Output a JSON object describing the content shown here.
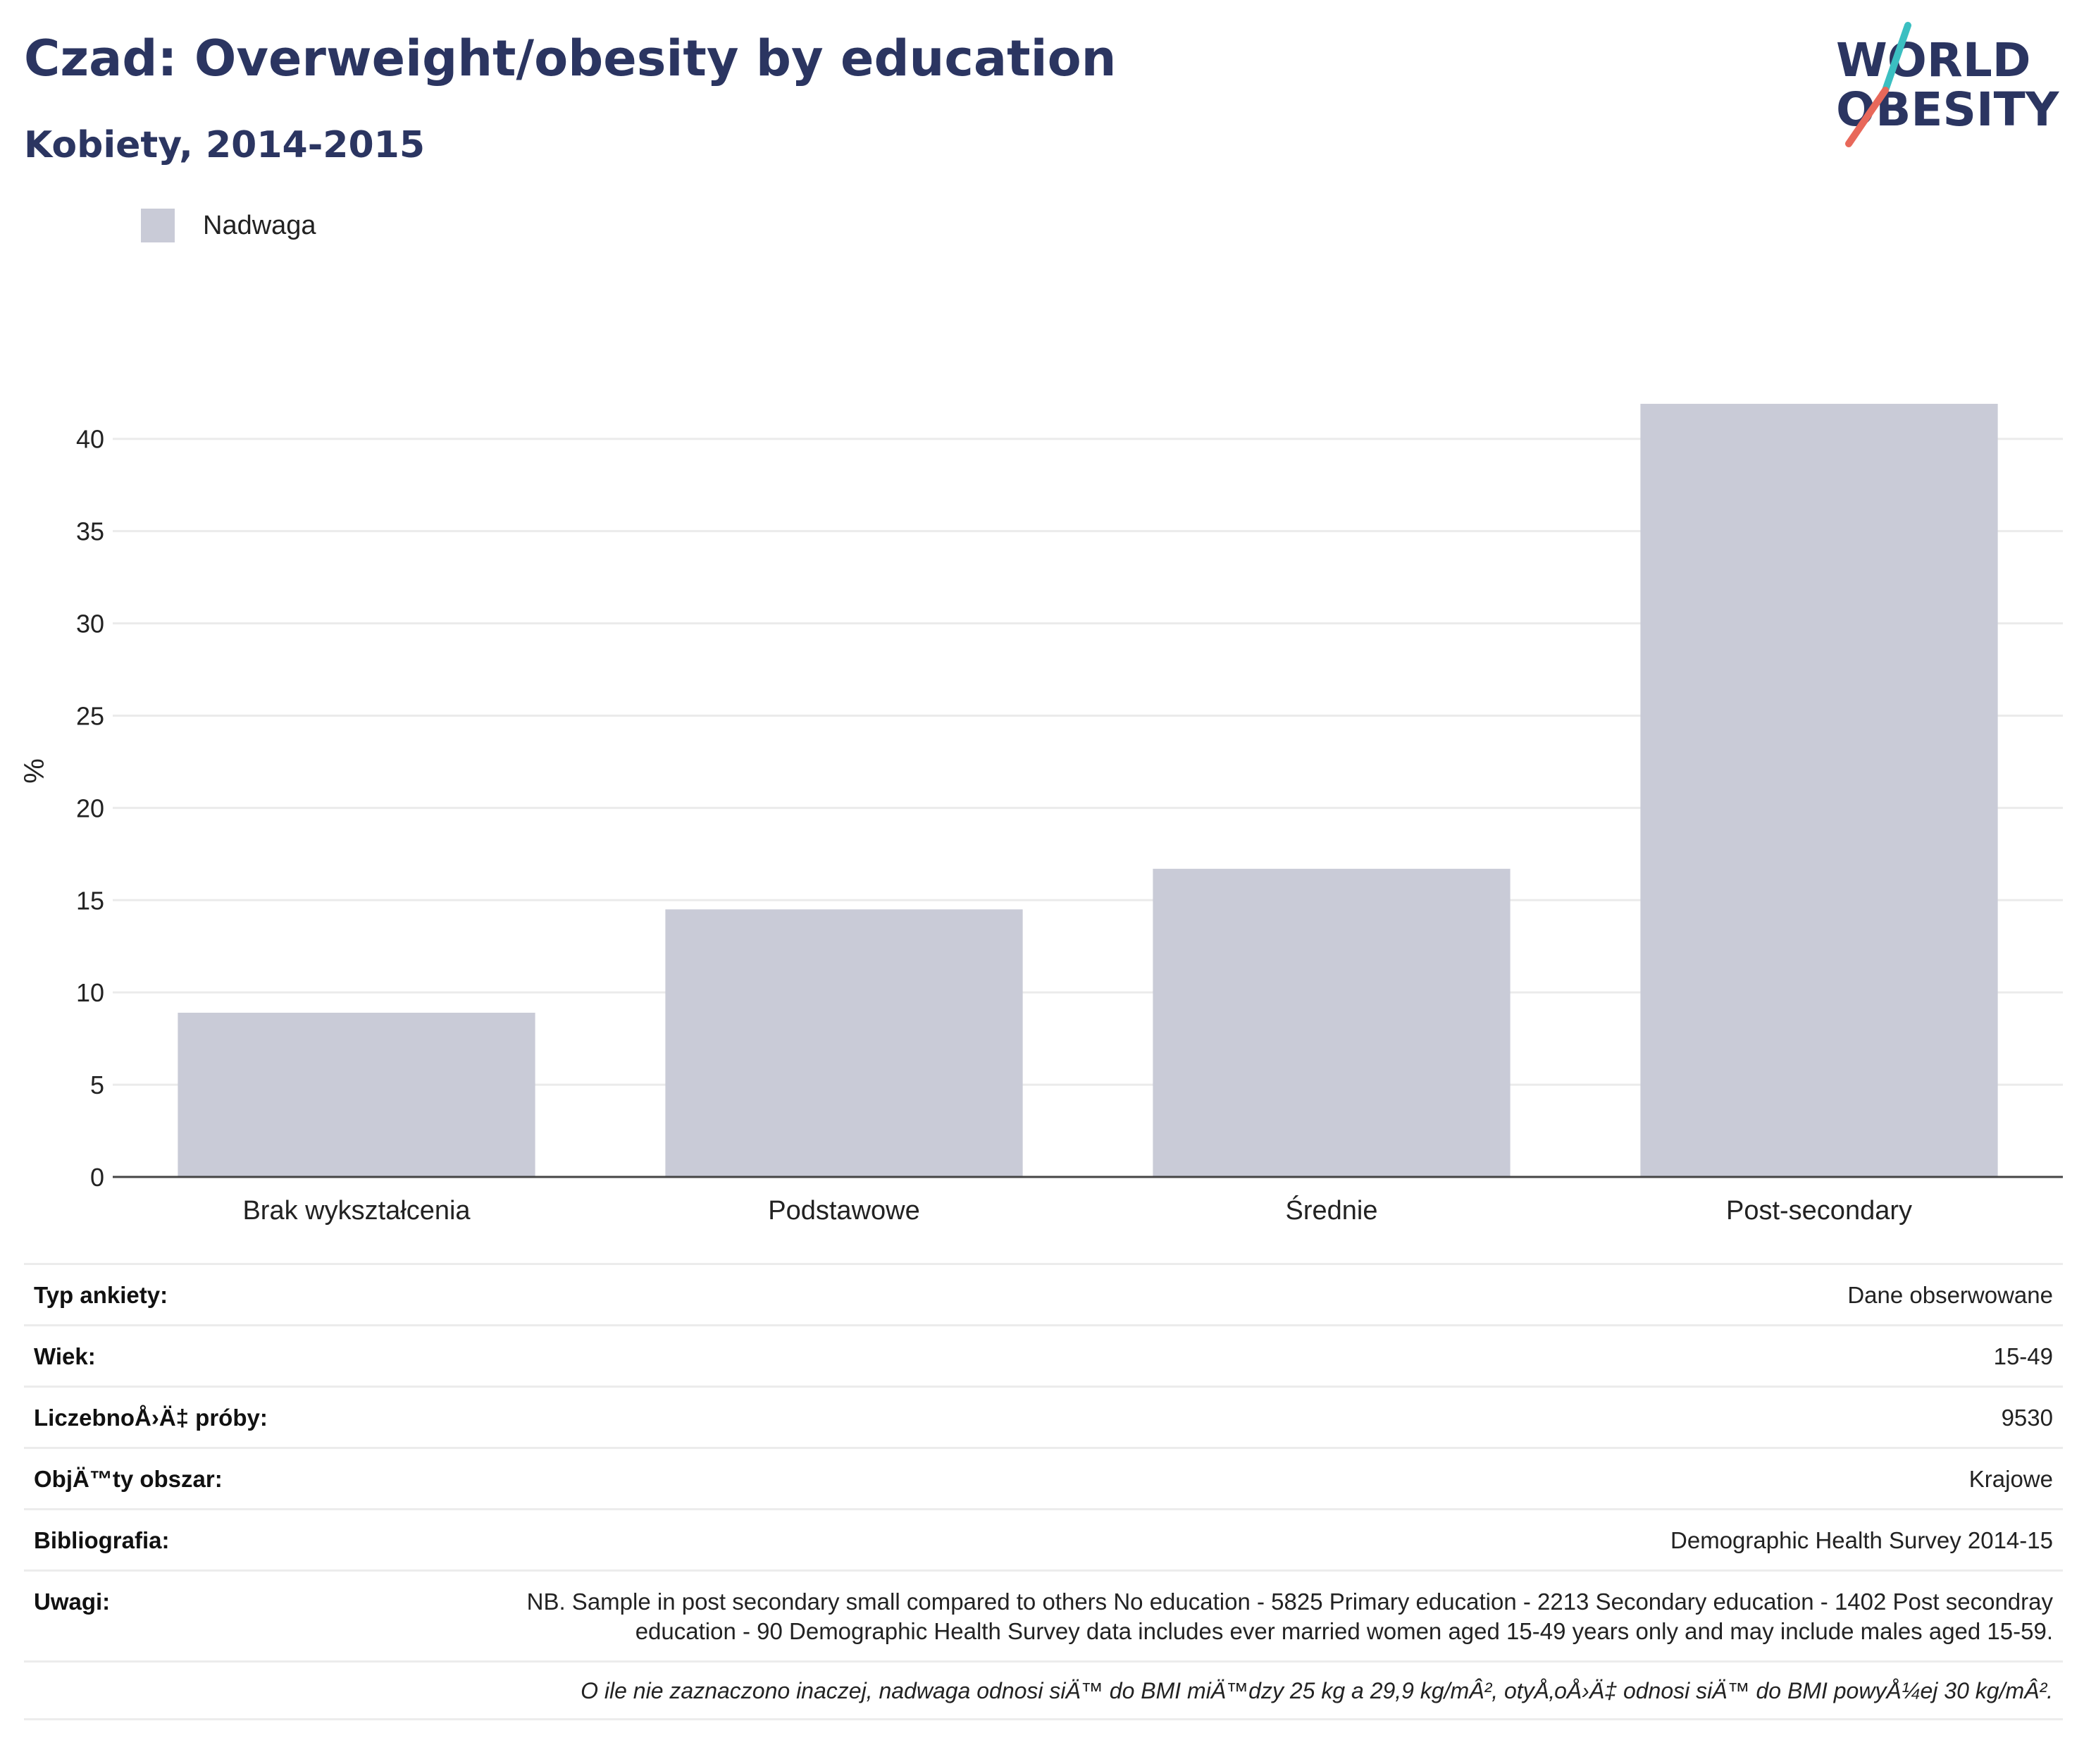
{
  "header": {
    "title": "Czad: Overweight/obesity by education",
    "subtitle": "Kobiety, 2014-2015"
  },
  "logo": {
    "line1": "WORLD",
    "line2": "OBESITY",
    "colors": {
      "text": "#2b3561",
      "slash_top": "#3bbfc1",
      "slash_bottom": "#e8685a"
    }
  },
  "colors": {
    "bar": "#c9cbd7",
    "grid": "#ebebeb",
    "axis": "#444444",
    "title": "#2b3561"
  },
  "chart_data": {
    "type": "bar",
    "title": "Czad: Overweight/obesity by education",
    "subtitle": "Kobiety, 2014-2015",
    "categories": [
      "Brak wykształcenia",
      "Podstawowe",
      "Średnie",
      "Post-secondary"
    ],
    "series": [
      {
        "name": "Nadwaga",
        "values": [
          8.9,
          14.5,
          16.7,
          41.9
        ]
      }
    ],
    "xlabel": "",
    "ylabel": "%",
    "ylim": [
      0,
      44
    ],
    "yticks": [
      0,
      5,
      10,
      15,
      20,
      25,
      30,
      35,
      40
    ],
    "grid": true,
    "legend_position": "top-left"
  },
  "meta": {
    "rows": [
      {
        "label": "Typ ankiety:",
        "value": "Dane obserwowane"
      },
      {
        "label": "Wiek:",
        "value": "15-49"
      },
      {
        "label": "LiczebnoÅ›Ä‡ próby:",
        "value": "9530"
      },
      {
        "label": "ObjÄ™ty obszar:",
        "value": "Krajowe"
      },
      {
        "label": "Bibliografia:",
        "value": "Demographic Health Survey 2014-15"
      },
      {
        "label": "Uwagi:",
        "value": "NB. Sample in post secondary small compared to others No education - 5825 Primary education - 2213 Secondary education - 1402 Post secondray education - 90 Demographic Health Survey data includes ever married women aged 15-49 years only and may include males aged 15-59."
      }
    ],
    "footnote": "O ile nie zaznaczono inaczej, nadwaga odnosi siÄ™ do BMI miÄ™dzy 25 kg a 29,9 kg/mÂ², otyÅ‚oÅ›Ä‡ odnosi siÄ™ do BMI powyÅ¼ej 30 kg/mÂ²."
  }
}
